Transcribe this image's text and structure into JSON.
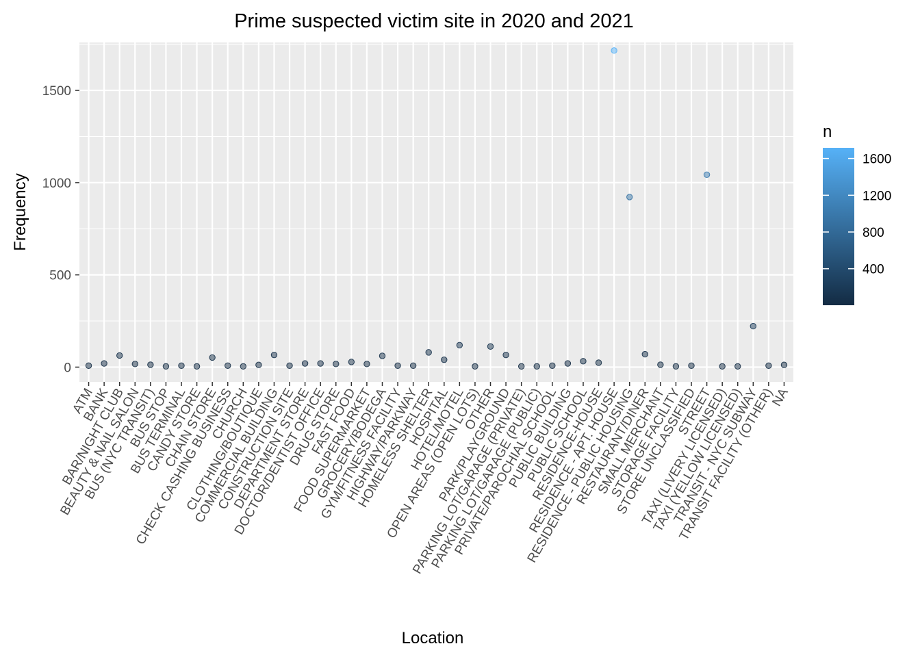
{
  "chart_data": {
    "type": "scatter",
    "title": "Prime suspected victim site in 2020 and 2021",
    "xlabel": "Location",
    "ylabel": "Frequency",
    "ylim": [
      -80,
      1760
    ],
    "yticks": [
      0,
      500,
      1000,
      1500
    ],
    "grid": true,
    "legend": {
      "title": "n",
      "position": "right",
      "type": "colorbar",
      "ticks": [
        400,
        800,
        1200,
        1600
      ],
      "range": [
        3,
        1716
      ],
      "color_low": "#132b43",
      "color_high": "#56b1f7"
    },
    "categories": [
      "ATM",
      "BANK",
      "BAR/NIGHT CLUB",
      "BEAUTY & NAIL SALON",
      "BUS (NYC TRANSIT)",
      "BUS STOP",
      "BUS TERMINAL",
      "CANDY STORE",
      "CHAIN STORE",
      "CHECK CASHING BUSINESS",
      "CHURCH",
      "CLOTHING/BOUTIQUE",
      "COMMERCIAL BUILDING",
      "CONSTRUCTION SITE",
      "DEPARTMENT STORE",
      "DOCTOR/DENTIST OFFICE",
      "DRUG STORE",
      "FAST FOOD",
      "FOOD SUPERMARKET",
      "GROCERY/BODEGA",
      "GYM/FITNESS FACILITY",
      "HIGHWAY/PARKWAY",
      "HOMELESS SHELTER",
      "HOSPITAL",
      "HOTEL/MOTEL",
      "OPEN AREAS (OPEN LOTS)",
      "OTHER",
      "PARK/PLAYGROUND",
      "PARKING LOT/GARAGE (PRIVATE)",
      "PARKING LOT/GARAGE (PUBLIC)",
      "PRIVATE/PAROCHIAL SCHOOL",
      "PUBLIC BUILDING",
      "PUBLIC SCHOOL",
      "RESIDENCE-HOUSE",
      "RESIDENCE - APT. HOUSE",
      "RESIDENCE - PUBLIC HOUSING",
      "RESTAURANT/DINER",
      "SMALL MERCHANT",
      "STORAGE FACILITY",
      "STORE UNCLASSIFIED",
      "STREET",
      "TAXI (LIVERY LICENSED)",
      "TAXI (YELLOW LICENSED)",
      "TRANSIT - NYC SUBWAY",
      "TRANSIT FACILITY (OTHER)",
      "NA"
    ],
    "values": [
      8,
      20,
      63,
      17,
      13,
      4,
      8,
      4,
      52,
      8,
      4,
      12,
      66,
      8,
      20,
      20,
      17,
      28,
      17,
      61,
      8,
      8,
      80,
      40,
      119,
      4,
      112,
      66,
      4,
      4,
      8,
      20,
      32,
      24,
      1716,
      922,
      70,
      13,
      4,
      8,
      1043,
      4,
      4,
      222,
      8,
      12
    ]
  }
}
